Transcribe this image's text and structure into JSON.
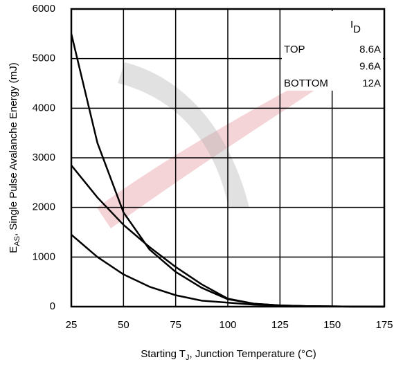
{
  "chart_data": {
    "type": "line",
    "x_label": [
      "Starting T",
      "J",
      ", Junction Temperature (°C)"
    ],
    "y_label": [
      "E",
      "AS",
      ", Single Pulse Avalanche Energy (mJ)"
    ],
    "x": [
      25,
      37.5,
      50,
      62.5,
      75,
      87.5,
      100,
      112.5,
      125,
      137.5,
      150,
      162.5,
      175
    ],
    "series": [
      {
        "name": "8.6A",
        "color": "#000000",
        "values": [
          5500,
          3300,
          1900,
          1150,
          700,
          380,
          150,
          60,
          25,
          10,
          5,
          2,
          0
        ]
      },
      {
        "name": "9.6A",
        "color": "#000000",
        "values": [
          2850,
          2200,
          1650,
          1200,
          800,
          450,
          160,
          60,
          25,
          10,
          5,
          2,
          0
        ]
      },
      {
        "name": "12A",
        "color": "#000000",
        "values": [
          1450,
          1000,
          650,
          400,
          230,
          120,
          80,
          40,
          20,
          10,
          5,
          2,
          0
        ]
      }
    ],
    "legend_title": "I",
    "legend_title_sub": "D",
    "legend_top_label": "TOP",
    "legend_bottom_label": "BOTTOM",
    "xlim": [
      25,
      175
    ],
    "xticks": [
      25,
      50,
      75,
      100,
      125,
      150,
      175
    ],
    "ylim": [
      0,
      6000
    ],
    "yticks": [
      0,
      1000,
      2000,
      3000,
      4000,
      5000,
      6000
    ],
    "grid": true
  }
}
